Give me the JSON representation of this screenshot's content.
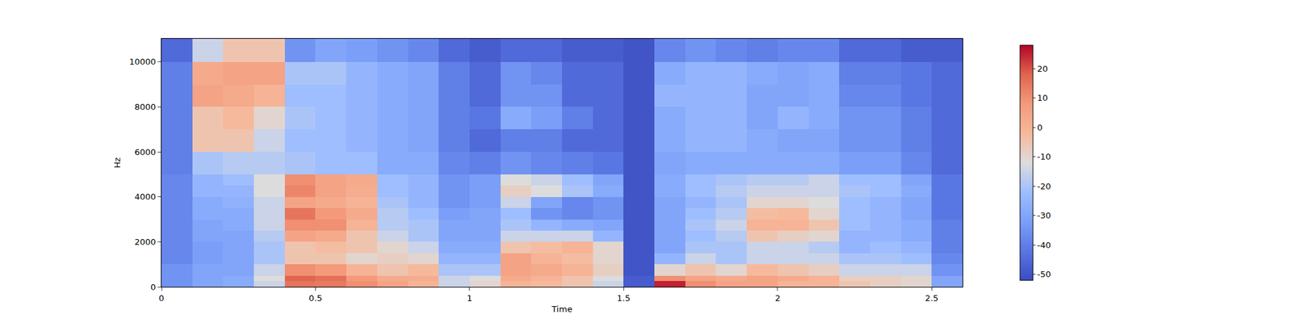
{
  "chart_data": {
    "type": "heatmap",
    "xlabel": "Time",
    "ylabel": "Hz",
    "x": [
      0,
      0.1,
      0.2,
      0.3,
      0.4,
      0.5,
      0.6,
      0.7,
      0.8,
      0.9,
      1,
      1.1,
      1.2,
      1.3,
      1.4,
      1.5,
      1.6,
      1.7,
      1.8,
      1.9,
      2,
      2.1,
      2.2,
      2.3,
      2.4,
      2.5,
      2.6
    ],
    "y": [
      0,
      250,
      500,
      1000,
      1500,
      2000,
      2500,
      3000,
      3500,
      4000,
      4500,
      5000,
      6000,
      7000,
      8000,
      9000,
      10000,
      11025
    ],
    "z": [
      [
        -35,
        -30,
        -28,
        -15,
        15,
        14,
        10,
        5,
        0,
        -15,
        -10,
        0,
        -2,
        -5,
        -15,
        -48,
        25,
        10,
        5,
        5,
        0,
        0,
        -5,
        -8,
        -10,
        -30
      ],
      [
        -35,
        -30,
        -28,
        -12,
        18,
        16,
        8,
        3,
        2,
        -15,
        -12,
        3,
        0,
        -5,
        -12,
        -48,
        10,
        5,
        3,
        5,
        3,
        0,
        -8,
        -8,
        -10,
        -30
      ],
      [
        -35,
        -30,
        -30,
        -15,
        10,
        8,
        0,
        -5,
        -2,
        -20,
        -20,
        5,
        3,
        0,
        -8,
        -50,
        -10,
        -5,
        -10,
        -2,
        -5,
        -8,
        -15,
        -15,
        -15,
        -35
      ],
      [
        -38,
        -32,
        -30,
        -20,
        -5,
        -5,
        -10,
        -8,
        -10,
        -25,
        -25,
        5,
        0,
        -3,
        -10,
        -50,
        -25,
        -15,
        -20,
        -15,
        -15,
        -15,
        -20,
        -20,
        -22,
        -38
      ],
      [
        -38,
        -32,
        -30,
        -20,
        -5,
        -3,
        -5,
        -10,
        -15,
        -28,
        -28,
        -5,
        -3,
        0,
        -10,
        -50,
        -30,
        -20,
        -20,
        -15,
        -15,
        -18,
        -25,
        -22,
        -25,
        -40
      ],
      [
        -38,
        -30,
        -30,
        -18,
        5,
        3,
        -5,
        -15,
        -20,
        -30,
        -30,
        -15,
        -15,
        -15,
        -25,
        -50,
        -30,
        -22,
        -18,
        -5,
        -8,
        -10,
        -25,
        -25,
        -28,
        -40
      ],
      [
        -38,
        -30,
        -28,
        -15,
        10,
        10,
        0,
        -18,
        -20,
        -30,
        -30,
        -20,
        -25,
        -28,
        -30,
        -50,
        -30,
        -20,
        -15,
        0,
        0,
        -5,
        -22,
        -25,
        -28,
        -40
      ],
      [
        -38,
        -28,
        -28,
        -15,
        15,
        8,
        3,
        -18,
        -22,
        -32,
        -30,
        -22,
        -35,
        -38,
        -35,
        -50,
        -30,
        -22,
        -18,
        -3,
        -2,
        -10,
        -22,
        -25,
        -30,
        -42
      ],
      [
        -38,
        -28,
        -26,
        -15,
        5,
        3,
        0,
        -20,
        -25,
        -35,
        -32,
        -15,
        -30,
        -38,
        -35,
        -50,
        -30,
        -25,
        -20,
        -10,
        -10,
        -12,
        -22,
        -25,
        -30,
        -42
      ],
      [
        -38,
        -25,
        -25,
        -12,
        12,
        5,
        2,
        -22,
        -25,
        -35,
        -32,
        -8,
        -12,
        -20,
        -28,
        -50,
        -28,
        -22,
        -18,
        -15,
        -15,
        -15,
        -20,
        -22,
        -28,
        -42
      ],
      [
        -38,
        -25,
        -22,
        -12,
        10,
        5,
        3,
        -22,
        -25,
        -35,
        -32,
        -12,
        -15,
        -22,
        -30,
        -50,
        -28,
        -22,
        -20,
        -18,
        -18,
        -15,
        -22,
        -22,
        -30,
        -42
      ],
      [
        -40,
        -20,
        -18,
        -18,
        -20,
        -22,
        -22,
        -28,
        -28,
        -38,
        -40,
        -35,
        -38,
        -40,
        -42,
        -50,
        -30,
        -28,
        -28,
        -28,
        -28,
        -28,
        -32,
        -32,
        -38,
        -45
      ],
      [
        -40,
        -5,
        -5,
        -15,
        -22,
        -22,
        -25,
        -28,
        -30,
        -40,
        -45,
        -40,
        -40,
        -45,
        -45,
        -50,
        -28,
        -25,
        -25,
        -28,
        -30,
        -30,
        -35,
        -35,
        -40,
        -45
      ],
      [
        -40,
        -5,
        -2,
        -10,
        -20,
        -22,
        -25,
        -28,
        -30,
        -40,
        -42,
        -28,
        -32,
        -40,
        -45,
        -50,
        -28,
        -25,
        -25,
        -30,
        -25,
        -28,
        -35,
        -35,
        -40,
        -45
      ],
      [
        -40,
        5,
        3,
        0,
        -22,
        -22,
        -25,
        -28,
        -30,
        -40,
        -45,
        -35,
        -35,
        -45,
        -45,
        -50,
        -25,
        -25,
        -25,
        -30,
        -30,
        -28,
        -38,
        -38,
        -42,
        -45
      ],
      [
        -40,
        3,
        5,
        5,
        -20,
        -20,
        -25,
        -28,
        -30,
        -40,
        -45,
        -35,
        -38,
        -45,
        -45,
        -50,
        -28,
        -25,
        -25,
        -28,
        -30,
        -28,
        -40,
        -40,
        -42,
        -45
      ],
      [
        -45,
        -15,
        -5,
        -5,
        -35,
        -30,
        -32,
        -35,
        -38,
        -45,
        -48,
        -45,
        -45,
        -48,
        -48,
        -50,
        -38,
        -35,
        -38,
        -40,
        -38,
        -38,
        -45,
        -45,
        -48,
        -48
      ]
    ],
    "xlim": [
      0,
      2.6
    ],
    "ylim": [
      0,
      11025
    ],
    "xticks": [
      0,
      0.5,
      1,
      1.5,
      2,
      2.5
    ],
    "yticks": [
      0,
      2000,
      4000,
      6000,
      8000,
      10000
    ],
    "colorbar": {
      "range": [
        -52,
        28
      ],
      "ticks": [
        -50,
        -40,
        -30,
        -20,
        -10,
        0,
        10,
        20
      ]
    }
  }
}
